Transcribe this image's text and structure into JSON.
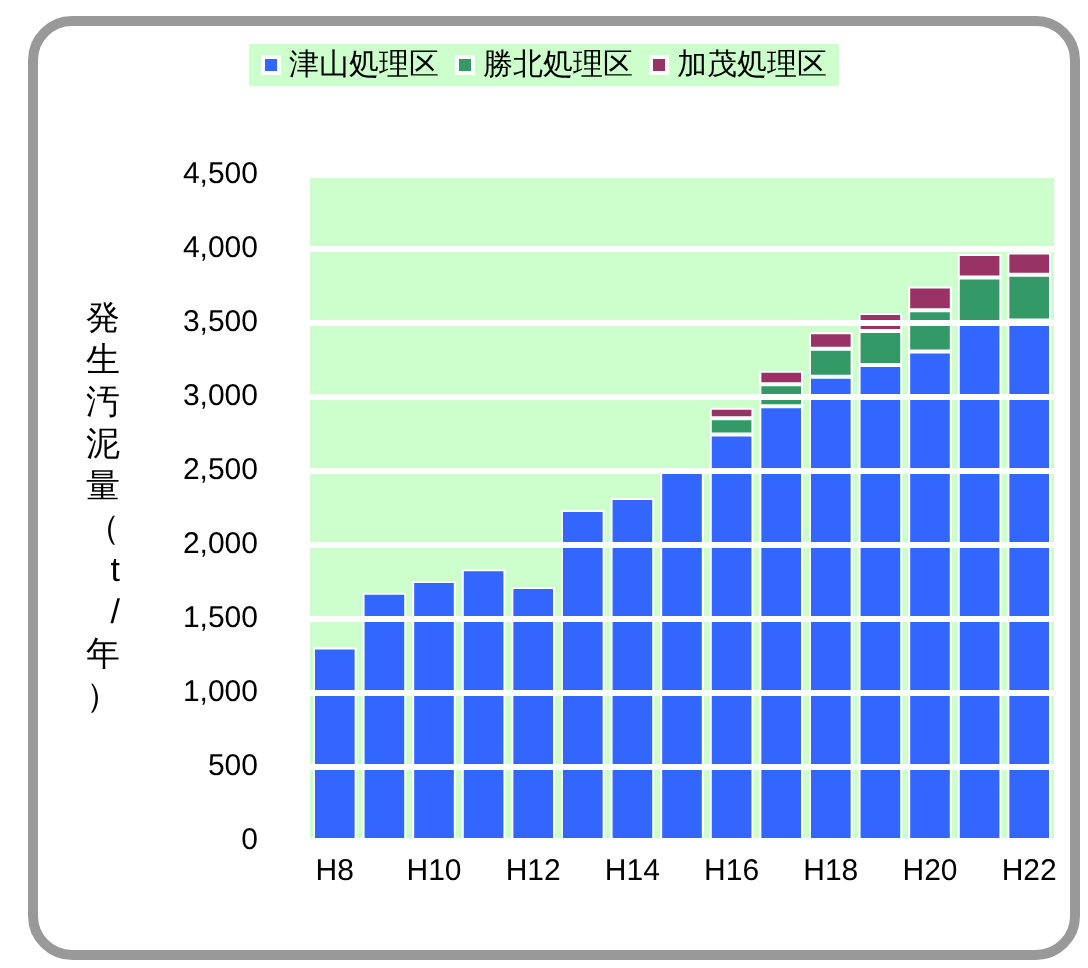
{
  "chart_data": {
    "type": "bar",
    "stacked": true,
    "ylabel": "発生汚泥量（t/年）",
    "categories": [
      "H8",
      null,
      "H10",
      null,
      "H12",
      null,
      "H14",
      null,
      "H16",
      null,
      "H18",
      null,
      "H20",
      null,
      "H22"
    ],
    "series": [
      {
        "name": "津山処理区",
        "color": "#3366ff",
        "values": [
          1300,
          1670,
          1750,
          1830,
          1710,
          2230,
          2310,
          2490,
          2740,
          2930,
          3130,
          3210,
          3300,
          3500,
          3510
        ]
      },
      {
        "name": "勝北処理区",
        "color": "#339966",
        "values": [
          null,
          null,
          null,
          null,
          null,
          null,
          null,
          null,
          110,
          150,
          190,
          230,
          280,
          300,
          310
        ]
      },
      {
        "name": "加茂処理区",
        "color": "#993366",
        "values": [
          null,
          null,
          null,
          null,
          null,
          null,
          null,
          null,
          70,
          90,
          110,
          120,
          160,
          160,
          150
        ]
      }
    ],
    "ylim": [
      0,
      4500
    ],
    "yticks": [
      0,
      500,
      {
        "value": 1000,
        "label": "1,000"
      },
      {
        "value": 1500,
        "label": "1,500"
      },
      {
        "value": 2000,
        "label": "2,000"
      },
      {
        "value": 2500,
        "label": "2,500"
      },
      {
        "value": 3000,
        "label": "3,000"
      },
      {
        "value": 3500,
        "label": "3,500"
      },
      {
        "value": 4000,
        "label": "4,000"
      },
      {
        "value": 4500,
        "label": "4,500"
      }
    ],
    "bands": [
      {
        "axis": "y",
        "from": 0,
        "to": 4500,
        "color": "#ccffcc"
      }
    ],
    "grid": "y",
    "legend": "top"
  }
}
